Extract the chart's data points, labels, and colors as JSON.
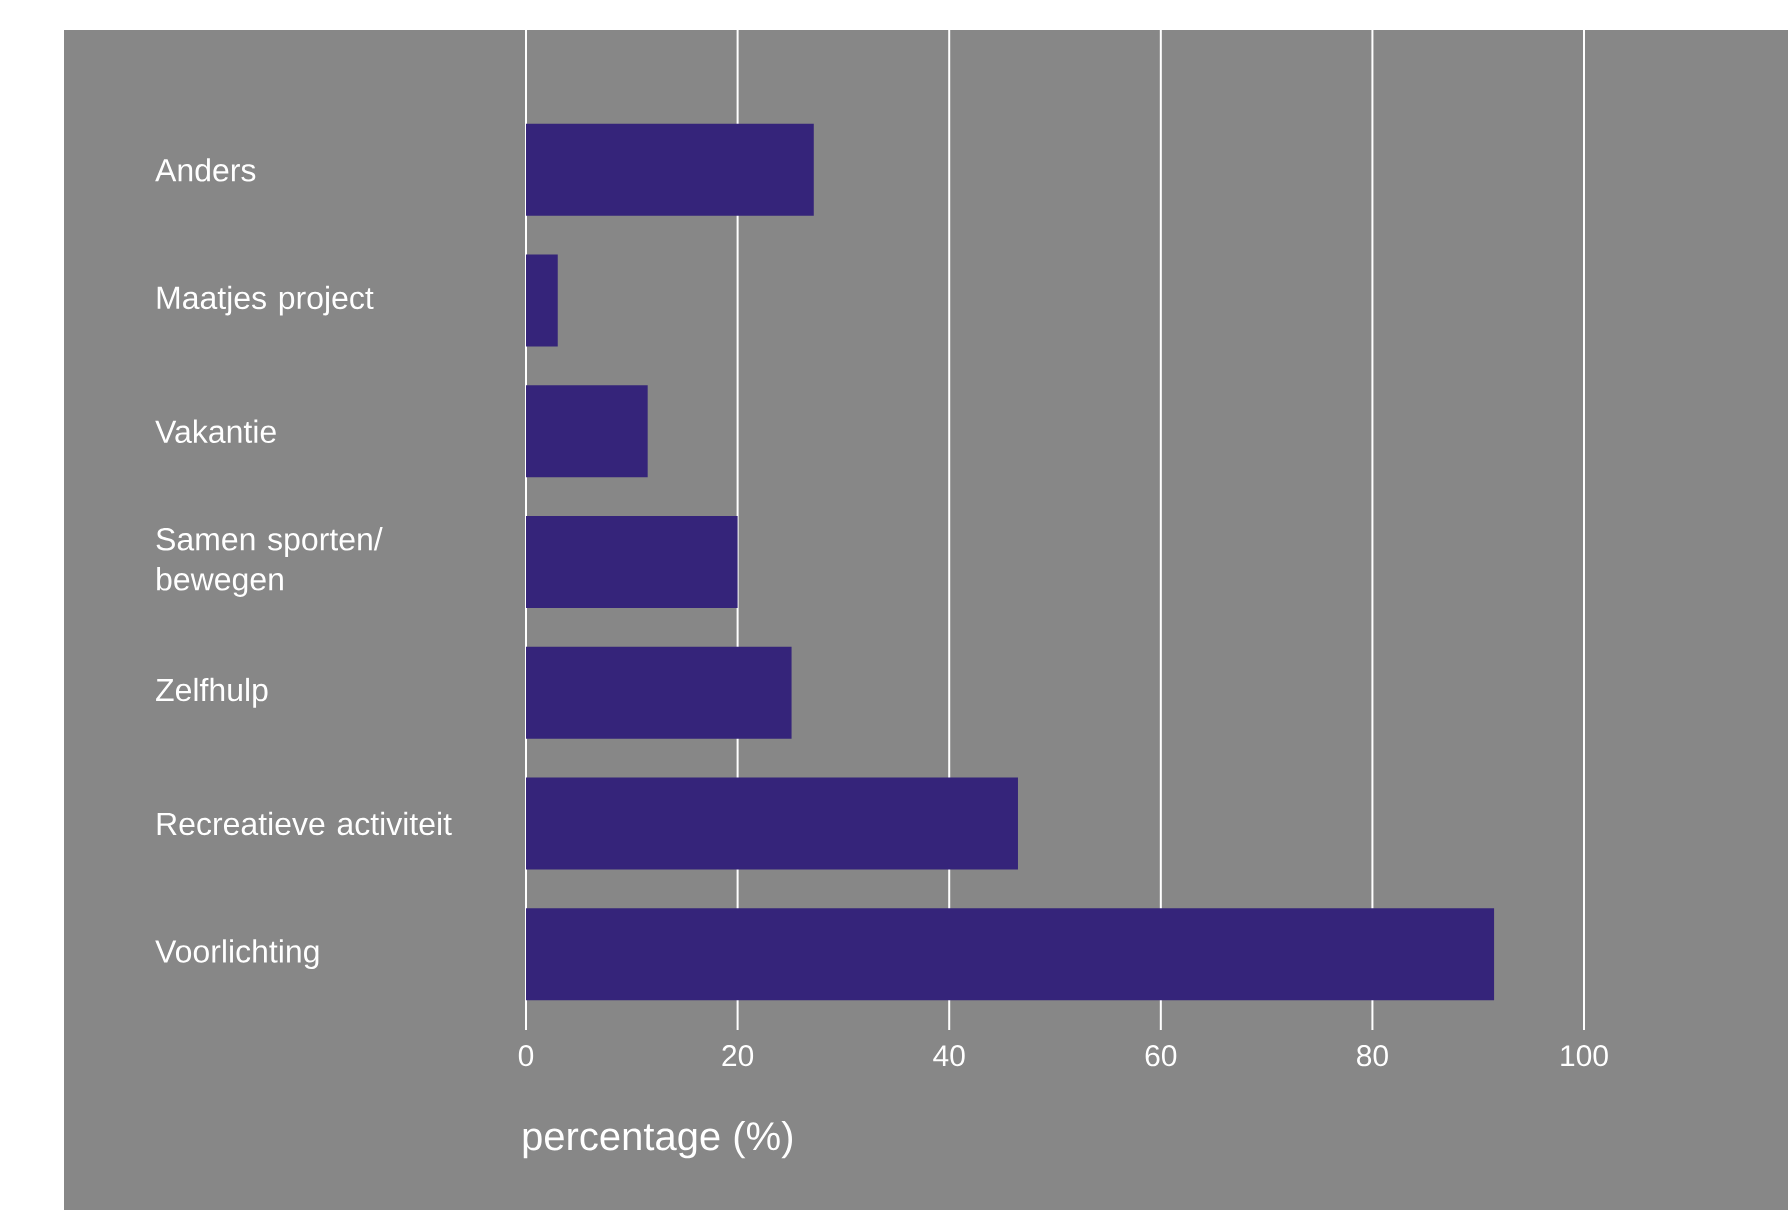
{
  "chart_data": {
    "type": "bar",
    "orientation": "horizontal",
    "xlabel": "percentage (%)",
    "categories": [
      "Anders",
      "Maatjes project",
      "Vakantie",
      "Samen sporten/ bewegen",
      "Zelfhulp",
      "Recreatieve activiteit",
      "Voorlichting"
    ],
    "values": [
      27.2,
      3,
      11.5,
      20,
      25.1,
      46.5,
      91.5
    ],
    "color": "#35247a",
    "xlim": [
      0,
      100
    ],
    "xticks": [
      0,
      20,
      40,
      60,
      80,
      100
    ],
    "grid": "x"
  }
}
